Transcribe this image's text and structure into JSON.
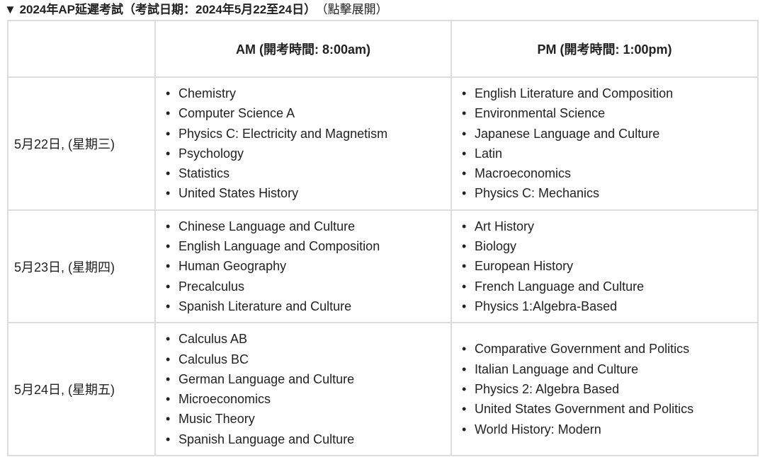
{
  "summary": {
    "icon": "triangle-down-icon",
    "title": "2024年AP延遲考試（考試日期：2024年5月22至24日）",
    "hint": "（點擊展開）"
  },
  "headers": [
    "",
    "AM (開考時間: 8:00am)",
    "PM (開考時間: 1:00pm)"
  ],
  "rows": [
    {
      "day": "5月22日, (星期三)",
      "am": [
        "Chemistry",
        "Computer Science A",
        "Physics C: Electricity and Magnetism",
        "Psychology",
        "Statistics",
        "United States History"
      ],
      "pm": [
        "English Literature and Composition",
        "Environmental Science",
        "Japanese Language and Culture",
        "Latin",
        "Macroeconomics",
        "Physics C: Mechanics"
      ]
    },
    {
      "day": "5月23日, (星期四)",
      "am": [
        "Chinese Language and Culture",
        "English Language and Composition",
        "Human Geography",
        "Precalculus",
        "Spanish Literature and Culture"
      ],
      "pm": [
        "Art History",
        "Biology",
        "European History",
        "French Language and Culture",
        "Physics 1:Algebra-Based"
      ]
    },
    {
      "day": "5月24日, (星期五)",
      "am": [
        "Calculus AB",
        "Calculus BC",
        "German Language and Culture",
        "Microeconomics",
        "Music Theory",
        "Spanish Language and Culture"
      ],
      "pm": [
        "Comparative Government and Politics",
        "Italian Language and Culture",
        "Physics 2: Algebra Based",
        "United States Government and Politics",
        "World History: Modern"
      ]
    }
  ]
}
